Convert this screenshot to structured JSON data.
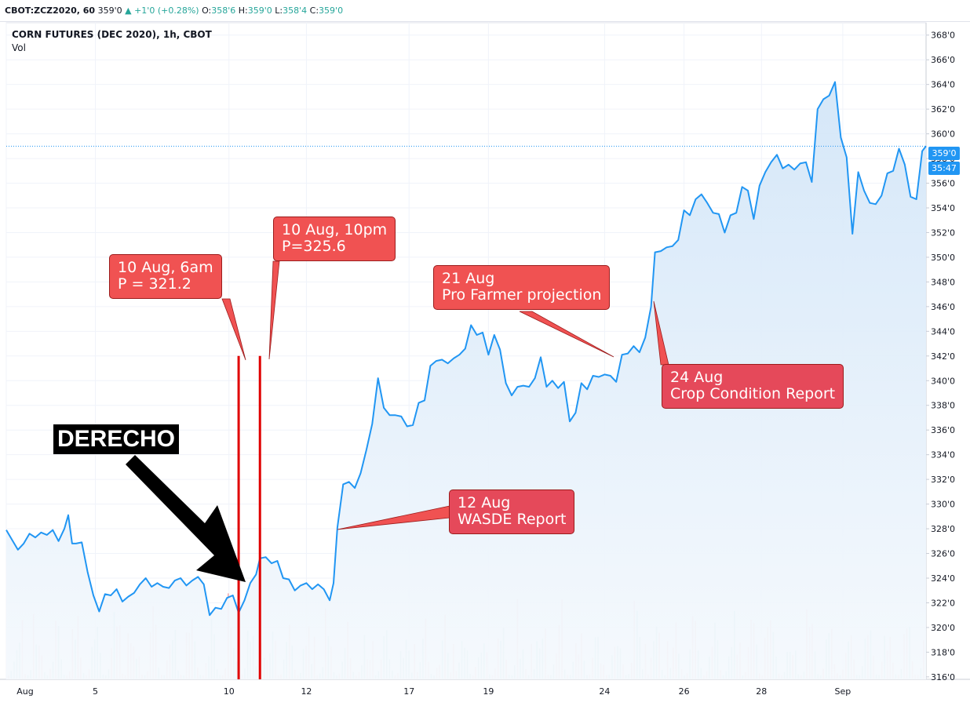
{
  "header": {
    "symbol": "CBOT:ZCZ2020, 60",
    "last": "359'0",
    "change": "+1'0 (+0.28%)",
    "o_label": "O:",
    "o_val": "358'6",
    "h_label": "H:",
    "h_val": "359'0",
    "l_label": "L:",
    "l_val": "358'4",
    "c_label": "C:",
    "c_val": "359'0"
  },
  "legend": {
    "title": "CORN FUTURES (DEC 2020), 1h, CBOT",
    "volume_label": "Vol"
  },
  "price_tag": {
    "price": "359'0",
    "countdown": "35:47"
  },
  "annotations": {
    "derecho": "DERECHO",
    "aug10_6am": [
      "10 Aug, 6am",
      "P = 321.2"
    ],
    "aug10_10pm": [
      "10 Aug, 10pm",
      "P=325.6"
    ],
    "aug21": [
      "21 Aug",
      "Pro Farmer projection"
    ],
    "aug24": [
      "24 Aug",
      "Crop Condition Report"
    ],
    "aug12": [
      "12 Aug",
      "WASDE Report"
    ]
  },
  "colors": {
    "line": "#2196f3",
    "area_top": "#d3e6f8",
    "area_bottom": "#f5f9fd",
    "callout": "#f05252",
    "event_line": "#e00000",
    "volume_up": "#5cbcb4",
    "volume_down": "#f09090"
  },
  "chart_data": {
    "type": "area",
    "title": "CORN FUTURES (DEC 2020), 1h, CBOT",
    "y_ticks": [
      "316'0",
      "318'0",
      "320'0",
      "322'0",
      "324'0",
      "326'0",
      "328'0",
      "330'0",
      "332'0",
      "334'0",
      "336'0",
      "338'0",
      "340'0",
      "342'0",
      "344'0",
      "346'0",
      "348'0",
      "350'0",
      "352'0",
      "354'0",
      "356'0",
      "358'0",
      "360'0",
      "362'0",
      "364'0",
      "366'0",
      "368'0"
    ],
    "ylim": [
      315.8,
      369.0
    ],
    "x_ticks": [
      {
        "label": "Aug",
        "t": 0.0
      },
      {
        "label": "5",
        "t": 4.6
      },
      {
        "label": "10",
        "t": 11.5
      },
      {
        "label": "12",
        "t": 15.5
      },
      {
        "label": "17",
        "t": 20.8
      },
      {
        "label": "19",
        "t": 24.9
      },
      {
        "label": "24",
        "t": 30.9
      },
      {
        "label": "26",
        "t": 35.0
      },
      {
        "label": "28",
        "t": 39.0
      },
      {
        "label": "Sep",
        "t": 43.2
      }
    ],
    "xlim": [
      0.0,
      47.5
    ],
    "x_unit": "trading-day index (Aug 3 = 0)",
    "series": [
      {
        "values": [
          [
            0.0,
            327.9
          ],
          [
            0.3,
            327.1
          ],
          [
            0.6,
            326.3
          ],
          [
            0.9,
            326.8
          ],
          [
            1.2,
            327.6
          ],
          [
            1.5,
            327.3
          ],
          [
            1.8,
            327.7
          ],
          [
            2.1,
            327.5
          ],
          [
            2.4,
            327.9
          ],
          [
            2.7,
            327.0
          ],
          [
            3.0,
            328.0
          ],
          [
            3.2,
            329.1
          ],
          [
            3.4,
            326.8
          ],
          [
            3.6,
            326.8
          ],
          [
            3.9,
            326.9
          ],
          [
            4.2,
            324.5
          ],
          [
            4.5,
            322.6
          ],
          [
            4.8,
            321.3
          ],
          [
            5.1,
            322.7
          ],
          [
            5.4,
            322.6
          ],
          [
            5.7,
            323.1
          ],
          [
            6.0,
            322.1
          ],
          [
            6.3,
            322.5
          ],
          [
            6.6,
            322.8
          ],
          [
            6.9,
            323.5
          ],
          [
            7.2,
            324.0
          ],
          [
            7.5,
            323.3
          ],
          [
            7.8,
            323.6
          ],
          [
            8.1,
            323.3
          ],
          [
            8.4,
            323.2
          ],
          [
            8.7,
            323.8
          ],
          [
            9.0,
            324.0
          ],
          [
            9.3,
            323.4
          ],
          [
            9.6,
            323.8
          ],
          [
            9.9,
            324.1
          ],
          [
            10.2,
            323.5
          ],
          [
            10.5,
            321.0
          ],
          [
            10.8,
            321.6
          ],
          [
            11.1,
            321.5
          ],
          [
            11.4,
            322.4
          ],
          [
            11.7,
            322.6
          ],
          [
            12.0,
            321.2
          ],
          [
            12.3,
            322.2
          ],
          [
            12.6,
            323.6
          ],
          [
            12.9,
            324.3
          ],
          [
            13.1,
            325.6
          ],
          [
            13.4,
            325.7
          ],
          [
            13.7,
            325.2
          ],
          [
            14.0,
            325.4
          ],
          [
            14.3,
            324.0
          ],
          [
            14.6,
            323.9
          ],
          [
            14.9,
            323.0
          ],
          [
            15.2,
            323.4
          ],
          [
            15.5,
            323.6
          ],
          [
            15.8,
            323.1
          ],
          [
            16.1,
            323.5
          ],
          [
            16.4,
            323.1
          ],
          [
            16.7,
            322.2
          ],
          [
            16.9,
            323.6
          ],
          [
            17.1,
            328.1
          ],
          [
            17.4,
            331.6
          ],
          [
            17.7,
            331.8
          ],
          [
            18.0,
            331.3
          ],
          [
            18.3,
            332.5
          ],
          [
            18.6,
            334.4
          ],
          [
            18.9,
            336.5
          ],
          [
            19.2,
            340.2
          ],
          [
            19.5,
            337.8
          ],
          [
            19.8,
            337.2
          ],
          [
            20.1,
            337.2
          ],
          [
            20.4,
            337.1
          ],
          [
            20.7,
            336.3
          ],
          [
            21.0,
            336.4
          ],
          [
            21.3,
            338.2
          ],
          [
            21.6,
            338.4
          ],
          [
            21.9,
            341.2
          ],
          [
            22.2,
            341.6
          ],
          [
            22.5,
            341.7
          ],
          [
            22.8,
            341.4
          ],
          [
            23.1,
            341.8
          ],
          [
            23.4,
            342.1
          ],
          [
            23.7,
            342.6
          ],
          [
            24.0,
            344.5
          ],
          [
            24.3,
            343.7
          ],
          [
            24.6,
            343.9
          ],
          [
            24.9,
            342.1
          ],
          [
            25.2,
            343.7
          ],
          [
            25.5,
            342.5
          ],
          [
            25.8,
            339.8
          ],
          [
            26.1,
            338.8
          ],
          [
            26.4,
            339.5
          ],
          [
            26.7,
            339.6
          ],
          [
            27.0,
            339.5
          ],
          [
            27.3,
            340.2
          ],
          [
            27.6,
            341.9
          ],
          [
            27.9,
            339.5
          ],
          [
            28.2,
            340.0
          ],
          [
            28.5,
            339.4
          ],
          [
            28.8,
            339.9
          ],
          [
            29.1,
            336.7
          ],
          [
            29.4,
            337.4
          ],
          [
            29.7,
            339.8
          ],
          [
            30.0,
            339.3
          ],
          [
            30.3,
            340.4
          ],
          [
            30.6,
            340.3
          ],
          [
            30.9,
            340.5
          ],
          [
            31.2,
            340.4
          ],
          [
            31.5,
            339.9
          ],
          [
            31.8,
            342.1
          ],
          [
            32.1,
            342.2
          ],
          [
            32.4,
            342.8
          ],
          [
            32.7,
            342.3
          ],
          [
            33.0,
            343.5
          ],
          [
            33.3,
            346.0
          ],
          [
            33.5,
            350.4
          ],
          [
            33.8,
            350.5
          ],
          [
            34.1,
            350.8
          ],
          [
            34.4,
            350.9
          ],
          [
            34.7,
            351.4
          ],
          [
            35.0,
            353.8
          ],
          [
            35.3,
            353.4
          ],
          [
            35.6,
            354.7
          ],
          [
            35.9,
            355.1
          ],
          [
            36.2,
            354.4
          ],
          [
            36.5,
            353.6
          ],
          [
            36.8,
            353.5
          ],
          [
            37.1,
            352.0
          ],
          [
            37.4,
            353.4
          ],
          [
            37.7,
            353.6
          ],
          [
            38.0,
            355.7
          ],
          [
            38.3,
            355.4
          ],
          [
            38.6,
            353.1
          ],
          [
            38.9,
            355.8
          ],
          [
            39.2,
            356.9
          ],
          [
            39.5,
            357.7
          ],
          [
            39.8,
            358.3
          ],
          [
            40.1,
            357.2
          ],
          [
            40.4,
            357.5
          ],
          [
            40.7,
            357.1
          ],
          [
            41.0,
            357.6
          ],
          [
            41.3,
            357.7
          ],
          [
            41.6,
            356.1
          ],
          [
            41.9,
            362.0
          ],
          [
            42.2,
            362.8
          ],
          [
            42.5,
            363.1
          ],
          [
            42.8,
            364.2
          ],
          [
            43.1,
            359.7
          ],
          [
            43.4,
            358.1
          ],
          [
            43.7,
            351.9
          ],
          [
            44.0,
            356.9
          ],
          [
            44.3,
            355.4
          ],
          [
            44.6,
            354.4
          ],
          [
            44.9,
            354.3
          ],
          [
            45.2,
            355.0
          ],
          [
            45.5,
            356.8
          ],
          [
            45.8,
            357.0
          ],
          [
            46.1,
            358.8
          ],
          [
            46.4,
            357.5
          ],
          [
            46.7,
            354.9
          ],
          [
            47.0,
            354.7
          ],
          [
            47.3,
            358.6
          ],
          [
            47.5,
            359.0
          ]
        ]
      }
    ],
    "events": [
      {
        "label": "10 Aug, 6am",
        "t": 12.0,
        "price": 321.2
      },
      {
        "label": "10 Aug, 10pm",
        "t": 13.1,
        "price": 325.6
      }
    ],
    "grid": true,
    "legend_position": "top-left"
  }
}
